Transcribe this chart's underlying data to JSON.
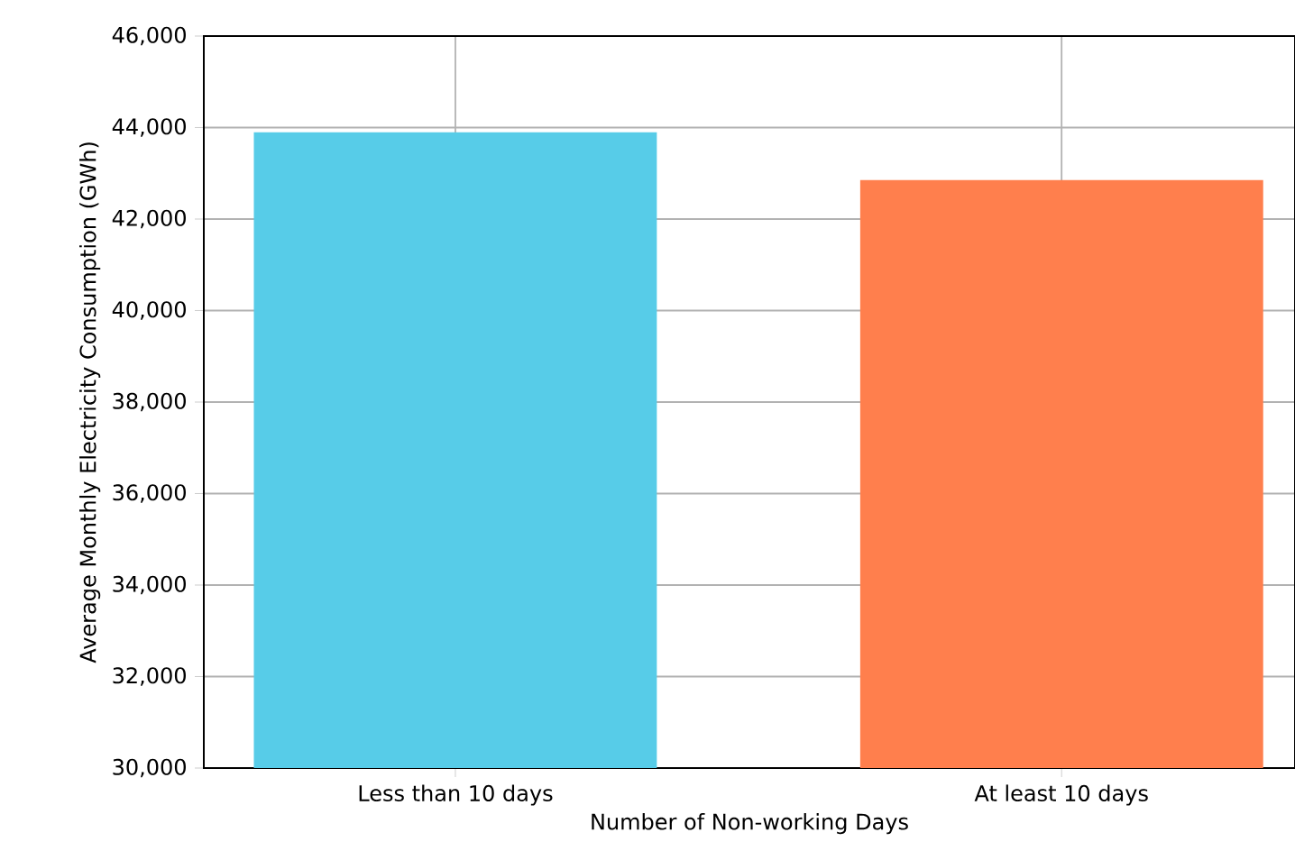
{
  "chart_data": {
    "type": "bar",
    "xlabel": "Number of Non-working Days",
    "ylabel": "Average Monthly Electricity Consumption (GWh)",
    "categories": [
      "Less than 10 days",
      "At least 10 days"
    ],
    "values": [
      43900,
      42850
    ],
    "colors": [
      "#57cce8",
      "#ff7f4d"
    ],
    "ylim": [
      30000,
      46000
    ],
    "yticks": [
      {
        "value": 30000,
        "label": "30,000"
      },
      {
        "value": 32000,
        "label": "32,000"
      },
      {
        "value": 34000,
        "label": "34,000"
      },
      {
        "value": 36000,
        "label": "36,000"
      },
      {
        "value": 38000,
        "label": "38,000"
      },
      {
        "value": 40000,
        "label": "40,000"
      },
      {
        "value": 42000,
        "label": "42,000"
      },
      {
        "value": 44000,
        "label": "44,000"
      },
      {
        "value": 46000,
        "label": "46,000"
      }
    ],
    "grid": true
  }
}
